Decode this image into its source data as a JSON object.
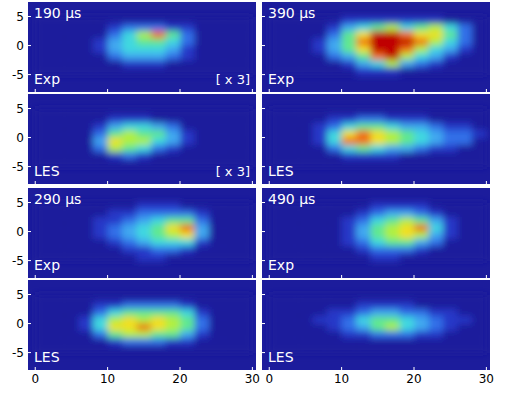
{
  "chart_data": [
    {
      "type": "heatmap",
      "title": "190 µs",
      "label": "Exp",
      "annotation": "[ x 3]",
      "tick_labels": "y",
      "xlim": [
        -1,
        30.5
      ],
      "ylim": [
        -8,
        7.5
      ],
      "xticks": [
        0,
        10,
        20,
        30
      ],
      "yticks": [
        -5,
        0,
        5
      ],
      "zlim": [
        0,
        9
      ],
      "x_edges": [
        0,
        2,
        4,
        6,
        8,
        10,
        12,
        14,
        16,
        18,
        20,
        22,
        24,
        26,
        28,
        30
      ],
      "y_edges": [
        5,
        3.75,
        2.5,
        1.25,
        0,
        -1.25,
        -2.5,
        -3.75,
        -5
      ],
      "cells": [
        [
          0,
          0,
          0,
          0,
          0,
          0,
          0,
          0,
          0,
          0,
          0,
          0,
          0,
          0,
          0
        ],
        [
          0,
          0,
          0,
          0,
          0,
          1,
          2,
          2,
          2,
          1,
          1,
          0,
          0,
          0,
          0
        ],
        [
          0,
          0,
          0,
          0,
          0,
          2,
          4,
          6,
          8,
          5,
          2,
          0,
          0,
          0,
          0
        ],
        [
          0,
          0,
          0,
          0,
          1,
          3,
          4,
          5,
          5,
          4,
          2,
          0,
          0,
          0,
          0
        ],
        [
          0,
          0,
          0,
          0,
          1,
          3,
          4,
          4,
          4,
          3,
          1,
          0,
          0,
          0,
          0
        ],
        [
          0,
          0,
          0,
          0,
          0,
          2,
          3,
          3,
          3,
          2,
          1,
          0,
          0,
          0,
          0
        ],
        [
          0,
          0,
          0,
          0,
          0,
          0,
          1,
          1,
          1,
          0,
          0,
          0,
          0,
          0,
          0
        ],
        [
          0,
          0,
          0,
          0,
          0,
          0,
          0,
          0,
          0,
          0,
          0,
          0,
          0,
          0,
          0
        ]
      ]
    },
    {
      "type": "heatmap",
      "label": "LES",
      "annotation": "[ x 3]",
      "tick_labels": "y",
      "xlim": [
        -1,
        30.5
      ],
      "ylim": [
        -8,
        7.5
      ],
      "xticks": [
        0,
        10,
        20,
        30
      ],
      "yticks": [
        -5,
        0,
        5
      ],
      "zlim": [
        0,
        9
      ],
      "x_edges": [
        0,
        2,
        4,
        6,
        8,
        10,
        12,
        14,
        16,
        18,
        20,
        22,
        24,
        26,
        28,
        30
      ],
      "y_edges": [
        5,
        3.75,
        2.5,
        1.25,
        0,
        -1.25,
        -2.5,
        -3.75,
        -5
      ],
      "cells": [
        [
          0,
          0,
          0,
          0,
          0,
          0,
          0,
          0,
          0,
          0,
          0,
          0,
          0,
          0,
          0
        ],
        [
          0,
          0,
          0,
          0,
          0,
          1,
          1,
          1,
          0,
          0,
          0,
          0,
          0,
          0,
          0
        ],
        [
          0,
          0,
          0,
          0,
          1,
          3,
          4,
          4,
          3,
          2,
          0,
          0,
          0,
          0,
          0
        ],
        [
          0,
          0,
          0,
          0,
          2,
          5,
          6,
          5,
          5,
          3,
          1,
          0,
          0,
          0,
          0
        ],
        [
          0,
          0,
          0,
          0,
          3,
          7,
          6,
          6,
          4,
          3,
          1,
          0,
          0,
          0,
          0
        ],
        [
          0,
          0,
          0,
          0,
          2,
          6,
          5,
          4,
          2,
          1,
          0,
          0,
          0,
          0,
          0
        ],
        [
          0,
          0,
          0,
          0,
          0,
          1,
          2,
          1,
          0,
          0,
          0,
          0,
          0,
          0,
          0
        ],
        [
          0,
          0,
          0,
          0,
          0,
          0,
          0,
          0,
          0,
          0,
          0,
          0,
          0,
          0,
          0
        ]
      ]
    },
    {
      "type": "heatmap",
      "title": "390 µs",
      "label": "Exp",
      "tick_labels": false,
      "xlim": [
        -1,
        30.5
      ],
      "ylim": [
        -8,
        7.5
      ],
      "xticks": [
        0,
        10,
        20,
        30
      ],
      "yticks": [
        -5,
        0,
        5
      ],
      "zlim": [
        0,
        9
      ],
      "x_edges": [
        0,
        2,
        4,
        6,
        8,
        10,
        12,
        14,
        16,
        18,
        20,
        22,
        24,
        26,
        28,
        30
      ],
      "y_edges": [
        5,
        3.75,
        2.5,
        1.25,
        0,
        -1.25,
        -2.5,
        -3.75,
        -5
      ],
      "cells": [
        [
          0,
          0,
          0,
          0,
          0,
          1,
          1,
          1,
          1,
          1,
          1,
          1,
          0,
          0,
          0
        ],
        [
          0,
          0,
          0,
          0,
          1,
          3,
          4,
          5,
          6,
          4,
          5,
          6,
          4,
          2,
          0
        ],
        [
          0,
          0,
          0,
          0,
          2,
          5,
          7,
          9,
          9,
          8,
          7,
          7,
          5,
          2,
          0
        ],
        [
          0,
          0,
          0,
          1,
          3,
          5,
          8,
          9,
          9,
          9,
          8,
          6,
          4,
          2,
          0
        ],
        [
          0,
          0,
          0,
          1,
          3,
          5,
          7,
          9,
          9,
          8,
          6,
          4,
          3,
          1,
          0
        ],
        [
          0,
          0,
          0,
          0,
          2,
          3,
          5,
          8,
          9,
          6,
          4,
          3,
          1,
          0,
          0
        ],
        [
          0,
          0,
          0,
          0,
          0,
          1,
          3,
          4,
          6,
          3,
          2,
          1,
          0,
          0,
          0
        ],
        [
          0,
          0,
          0,
          0,
          0,
          0,
          1,
          1,
          1,
          0,
          0,
          0,
          0,
          0,
          0
        ]
      ]
    },
    {
      "type": "heatmap",
      "label": "LES",
      "tick_labels": false,
      "xlim": [
        -1,
        30.5
      ],
      "ylim": [
        -8,
        7.5
      ],
      "xticks": [
        0,
        10,
        20,
        30
      ],
      "yticks": [
        -5,
        0,
        5
      ],
      "zlim": [
        0,
        9
      ],
      "x_edges": [
        0,
        2,
        4,
        6,
        8,
        10,
        12,
        14,
        16,
        18,
        20,
        22,
        24,
        26,
        28,
        30
      ],
      "y_edges": [
        5,
        3.75,
        2.5,
        1.25,
        0,
        -1.25,
        -2.5,
        -3.75,
        -5
      ],
      "cells": [
        [
          0,
          0,
          0,
          0,
          0,
          0,
          0,
          0,
          0,
          0,
          0,
          0,
          0,
          0,
          0
        ],
        [
          0,
          0,
          0,
          0,
          1,
          1,
          2,
          2,
          1,
          1,
          1,
          0,
          0,
          0,
          0
        ],
        [
          0,
          0,
          0,
          1,
          2,
          4,
          5,
          5,
          4,
          3,
          3,
          2,
          1,
          1,
          0
        ],
        [
          0,
          0,
          0,
          1,
          4,
          7,
          8,
          7,
          6,
          5,
          4,
          3,
          2,
          2,
          1
        ],
        [
          0,
          0,
          0,
          1,
          4,
          8,
          8,
          7,
          6,
          5,
          4,
          3,
          2,
          2,
          0
        ],
        [
          0,
          0,
          0,
          0,
          2,
          4,
          5,
          4,
          3,
          3,
          2,
          1,
          1,
          0,
          0
        ],
        [
          0,
          0,
          0,
          0,
          0,
          1,
          1,
          1,
          1,
          0,
          0,
          0,
          0,
          0,
          0
        ],
        [
          0,
          0,
          0,
          0,
          0,
          0,
          0,
          0,
          0,
          0,
          0,
          0,
          0,
          0,
          0
        ]
      ]
    },
    {
      "type": "heatmap",
      "title": "290 µs",
      "label": "Exp",
      "tick_labels": "y",
      "xlim": [
        -1,
        30.5
      ],
      "ylim": [
        -8,
        7.5
      ],
      "xticks": [
        0,
        10,
        20,
        30
      ],
      "yticks": [
        -5,
        0,
        5
      ],
      "zlim": [
        0,
        9
      ],
      "x_edges": [
        0,
        2,
        4,
        6,
        8,
        10,
        12,
        14,
        16,
        18,
        20,
        22,
        24,
        26,
        28,
        30
      ],
      "y_edges": [
        5,
        3.75,
        2.5,
        1.25,
        0,
        -1.25,
        -2.5,
        -3.75,
        -5
      ],
      "cells": [
        [
          0,
          0,
          0,
          0,
          0,
          0,
          0,
          1,
          1,
          1,
          0,
          0,
          0,
          0,
          0
        ],
        [
          0,
          0,
          0,
          0,
          0,
          1,
          1,
          2,
          2,
          2,
          2,
          1,
          0,
          0,
          0
        ],
        [
          0,
          0,
          0,
          0,
          1,
          1,
          2,
          3,
          4,
          5,
          5,
          2,
          0,
          0,
          0
        ],
        [
          0,
          0,
          0,
          0,
          1,
          2,
          3,
          4,
          5,
          7,
          8,
          3,
          0,
          0,
          0
        ],
        [
          0,
          0,
          0,
          0,
          1,
          2,
          3,
          4,
          5,
          6,
          7,
          3,
          0,
          0,
          0
        ],
        [
          0,
          0,
          0,
          0,
          0,
          1,
          2,
          3,
          4,
          4,
          4,
          1,
          0,
          0,
          0
        ],
        [
          0,
          0,
          0,
          0,
          0,
          0,
          1,
          1,
          2,
          2,
          1,
          0,
          0,
          0,
          0
        ],
        [
          0,
          0,
          0,
          0,
          0,
          0,
          0,
          1,
          1,
          0,
          0,
          0,
          0,
          0,
          0
        ]
      ]
    },
    {
      "type": "heatmap",
      "label": "LES",
      "tick_labels": true,
      "xlim": [
        -1,
        30.5
      ],
      "ylim": [
        -8,
        7.5
      ],
      "xticks": [
        0,
        10,
        20,
        30
      ],
      "yticks": [
        -5,
        0,
        5
      ],
      "zlim": [
        0,
        9
      ],
      "x_edges": [
        0,
        2,
        4,
        6,
        8,
        10,
        12,
        14,
        16,
        18,
        20,
        22,
        24,
        26,
        28,
        30
      ],
      "y_edges": [
        5,
        3.75,
        2.5,
        1.25,
        0,
        -1.25,
        -2.5,
        -3.75,
        -5
      ],
      "cells": [
        [
          0,
          0,
          0,
          0,
          0,
          0,
          0,
          0,
          0,
          0,
          0,
          0,
          0,
          0,
          0
        ],
        [
          0,
          0,
          0,
          0,
          1,
          1,
          2,
          2,
          2,
          2,
          1,
          0,
          0,
          0,
          0
        ],
        [
          0,
          0,
          0,
          0,
          2,
          4,
          5,
          5,
          5,
          5,
          4,
          1,
          0,
          0,
          0
        ],
        [
          0,
          0,
          0,
          1,
          4,
          6,
          7,
          6,
          7,
          6,
          5,
          2,
          0,
          0,
          0
        ],
        [
          0,
          0,
          0,
          1,
          4,
          7,
          7,
          8,
          7,
          6,
          5,
          2,
          0,
          0,
          0
        ],
        [
          0,
          0,
          0,
          0,
          2,
          5,
          6,
          6,
          5,
          5,
          3,
          1,
          0,
          0,
          0
        ],
        [
          0,
          0,
          0,
          0,
          0,
          1,
          2,
          2,
          2,
          1,
          1,
          0,
          0,
          0,
          0
        ],
        [
          0,
          0,
          0,
          0,
          0,
          0,
          0,
          0,
          0,
          0,
          0,
          0,
          0,
          0,
          0
        ]
      ]
    },
    {
      "type": "heatmap",
      "title": "490 µs",
      "label": "Exp",
      "tick_labels": false,
      "xlim": [
        -1,
        30.5
      ],
      "ylim": [
        -8,
        7.5
      ],
      "xticks": [
        0,
        10,
        20,
        30
      ],
      "yticks": [
        -5,
        0,
        5
      ],
      "zlim": [
        0,
        9
      ],
      "x_edges": [
        0,
        2,
        4,
        6,
        8,
        10,
        12,
        14,
        16,
        18,
        20,
        22,
        24,
        26,
        28,
        30
      ],
      "y_edges": [
        5,
        3.75,
        2.5,
        1.25,
        0,
        -1.25,
        -2.5,
        -3.75,
        -5
      ],
      "cells": [
        [
          0,
          0,
          0,
          0,
          0,
          0,
          0,
          1,
          1,
          1,
          1,
          0,
          0,
          0,
          0
        ],
        [
          0,
          0,
          0,
          0,
          0,
          0,
          1,
          2,
          3,
          3,
          2,
          1,
          0,
          0,
          0
        ],
        [
          0,
          0,
          0,
          0,
          0,
          1,
          2,
          4,
          5,
          6,
          5,
          3,
          1,
          0,
          0
        ],
        [
          0,
          0,
          0,
          0,
          0,
          1,
          3,
          5,
          6,
          7,
          8,
          4,
          1,
          0,
          0
        ],
        [
          0,
          0,
          0,
          0,
          0,
          1,
          3,
          5,
          6,
          7,
          6,
          3,
          1,
          0,
          0
        ],
        [
          0,
          0,
          0,
          0,
          0,
          1,
          2,
          4,
          5,
          5,
          3,
          2,
          0,
          0,
          0
        ],
        [
          0,
          0,
          0,
          0,
          0,
          0,
          1,
          2,
          2,
          2,
          1,
          0,
          0,
          0,
          0
        ],
        [
          0,
          0,
          0,
          0,
          0,
          0,
          0,
          1,
          1,
          0,
          0,
          0,
          0,
          0,
          0
        ]
      ]
    },
    {
      "type": "heatmap",
      "label": "LES",
      "tick_labels": "x",
      "xlim": [
        -1,
        30.5
      ],
      "ylim": [
        -8,
        7.5
      ],
      "xticks": [
        0,
        10,
        20,
        30
      ],
      "yticks": [
        -5,
        0,
        5
      ],
      "zlim": [
        0,
        9
      ],
      "x_edges": [
        0,
        2,
        4,
        6,
        8,
        10,
        12,
        14,
        16,
        18,
        20,
        22,
        24,
        26,
        28,
        30
      ],
      "y_edges": [
        5,
        3.75,
        2.5,
        1.25,
        0,
        -1.25,
        -2.5,
        -3.75,
        -5
      ],
      "cells": [
        [
          0,
          0,
          0,
          0,
          0,
          0,
          0,
          0,
          0,
          0,
          0,
          0,
          0,
          0,
          0
        ],
        [
          0,
          0,
          0,
          0,
          0,
          0,
          1,
          1,
          1,
          1,
          0,
          0,
          0,
          0,
          0
        ],
        [
          0,
          0,
          0,
          0,
          1,
          1,
          2,
          3,
          3,
          2,
          2,
          1,
          1,
          0,
          0
        ],
        [
          0,
          0,
          0,
          1,
          1,
          2,
          4,
          5,
          5,
          4,
          3,
          2,
          1,
          1,
          0
        ],
        [
          0,
          0,
          0,
          0,
          1,
          2,
          3,
          5,
          6,
          4,
          3,
          2,
          1,
          0,
          0
        ],
        [
          0,
          0,
          0,
          0,
          0,
          1,
          1,
          2,
          2,
          2,
          1,
          1,
          0,
          0,
          0
        ],
        [
          0,
          0,
          0,
          0,
          0,
          0,
          0,
          0,
          0,
          0,
          0,
          0,
          0,
          0,
          0
        ],
        [
          0,
          0,
          0,
          0,
          0,
          0,
          0,
          0,
          0,
          0,
          0,
          0,
          0,
          0,
          0
        ]
      ]
    }
  ]
}
